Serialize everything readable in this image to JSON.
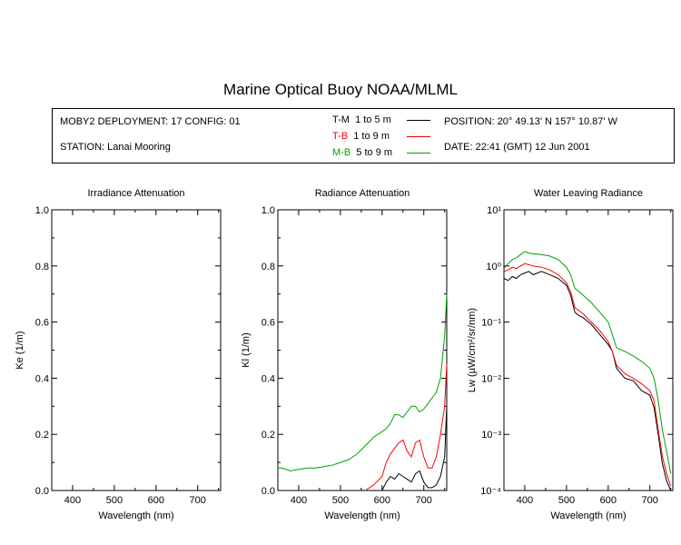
{
  "header": {
    "title": "Marine Optical Buoy NOAA/MLML",
    "deployment": "MOBY2 DEPLOYMENT: 17 CONFIG: 01",
    "station": "STATION: Lanai Mooring",
    "position": "POSITION: 20° 49.13' N   157° 10.87' W",
    "date": "DATE: 22:41 (GMT) 12 Jun 2001"
  },
  "legend": [
    {
      "code": "T-M",
      "range": "1 to 5  m",
      "color": "#000000"
    },
    {
      "code": "T-B",
      "range": "1 to 9  m",
      "color": "#ff0000"
    },
    {
      "code": "M-B",
      "range": "5 to 9  m",
      "color": "#00a000"
    }
  ],
  "chart_data": [
    {
      "type": "line",
      "title": "Irradiance Attenuation",
      "xlabel": "Wavelength (nm)",
      "ylabel": "Ke  (1/m)",
      "xlim": [
        350,
        755
      ],
      "ylim": [
        0,
        1
      ],
      "x_ticks": [
        400,
        500,
        600,
        700
      ],
      "y_ticks": [
        0.0,
        0.2,
        0.4,
        0.6,
        0.8,
        1.0
      ],
      "y_tick_labels": [
        "0.0",
        "0.2",
        "0.4",
        "0.6",
        "0.8",
        "1.0"
      ],
      "series": []
    },
    {
      "type": "line",
      "title": "Radiance Attenuation",
      "xlabel": "Wavelength (nm)",
      "ylabel": "Kl  (1/m)",
      "xlim": [
        350,
        755
      ],
      "ylim": [
        0,
        1
      ],
      "x_ticks": [
        400,
        500,
        600,
        700
      ],
      "y_ticks": [
        0.0,
        0.2,
        0.4,
        0.6,
        0.8,
        1.0
      ],
      "y_tick_labels": [
        "0.0",
        "0.2",
        "0.4",
        "0.6",
        "0.8",
        "1.0"
      ],
      "series": [
        {
          "name": "T-M",
          "color": "#000000",
          "x": [
            600,
            610,
            620,
            630,
            640,
            650,
            660,
            670,
            680,
            690,
            700,
            710,
            720,
            730,
            740,
            750,
            755
          ],
          "y": [
            0.0,
            0.03,
            0.05,
            0.04,
            0.06,
            0.05,
            0.04,
            0.03,
            0.06,
            0.07,
            0.03,
            0.01,
            0.01,
            0.02,
            0.05,
            0.12,
            0.3
          ]
        },
        {
          "name": "T-B",
          "color": "#ff0000",
          "x": [
            560,
            580,
            600,
            610,
            620,
            630,
            640,
            650,
            660,
            670,
            680,
            690,
            700,
            710,
            720,
            730,
            740,
            750,
            755
          ],
          "y": [
            0.0,
            0.02,
            0.05,
            0.1,
            0.13,
            0.15,
            0.17,
            0.18,
            0.14,
            0.12,
            0.17,
            0.18,
            0.12,
            0.08,
            0.08,
            0.12,
            0.2,
            0.3,
            0.45
          ]
        },
        {
          "name": "M-B",
          "color": "#00a000",
          "x": [
            350,
            360,
            380,
            400,
            420,
            440,
            460,
            480,
            500,
            520,
            540,
            560,
            580,
            600,
            610,
            620,
            630,
            640,
            650,
            660,
            670,
            680,
            690,
            700,
            710,
            720,
            730,
            740,
            750,
            755
          ],
          "y": [
            0.08,
            0.08,
            0.07,
            0.075,
            0.08,
            0.08,
            0.085,
            0.09,
            0.1,
            0.11,
            0.13,
            0.16,
            0.19,
            0.21,
            0.22,
            0.24,
            0.27,
            0.27,
            0.26,
            0.28,
            0.3,
            0.3,
            0.28,
            0.29,
            0.31,
            0.33,
            0.35,
            0.4,
            0.55,
            0.7
          ]
        }
      ]
    },
    {
      "type": "line",
      "title": "Water Leaving Radiance",
      "xlabel": "Wavelength (nm)",
      "ylabel": "Lw  (µW/cm²/sr/nm)",
      "xlim": [
        350,
        755
      ],
      "ylim": [
        0.0001,
        10
      ],
      "y_scale": "log",
      "x_ticks": [
        400,
        500,
        600,
        700
      ],
      "y_ticks": [
        0.0001,
        0.001,
        0.01,
        0.1,
        1,
        10
      ],
      "y_tick_labels": [
        "10⁻⁴",
        "10⁻³",
        "10⁻²",
        "10⁻¹",
        "10⁰",
        "10¹"
      ],
      "series": [
        {
          "name": "T-M",
          "color": "#000000",
          "x": [
            350,
            360,
            370,
            380,
            390,
            400,
            410,
            420,
            440,
            460,
            480,
            500,
            510,
            520,
            530,
            540,
            560,
            580,
            600,
            610,
            620,
            640,
            660,
            680,
            700,
            710,
            720,
            730,
            740,
            750
          ],
          "y": [
            0.6,
            0.55,
            0.65,
            0.6,
            0.7,
            0.75,
            0.8,
            0.7,
            0.8,
            0.7,
            0.6,
            0.45,
            0.3,
            0.15,
            0.13,
            0.12,
            0.09,
            0.06,
            0.04,
            0.03,
            0.015,
            0.01,
            0.009,
            0.006,
            0.005,
            0.003,
            0.001,
            0.0003,
            0.00015,
            0.0001
          ]
        },
        {
          "name": "T-B",
          "color": "#ff0000",
          "x": [
            350,
            360,
            370,
            380,
            390,
            400,
            410,
            420,
            440,
            460,
            480,
            500,
            510,
            520,
            530,
            540,
            560,
            580,
            600,
            610,
            620,
            640,
            660,
            680,
            700,
            710,
            720,
            730,
            740,
            750
          ],
          "y": [
            0.8,
            0.85,
            0.95,
            0.9,
            1.0,
            1.1,
            1.05,
            1.0,
            0.95,
            0.85,
            0.7,
            0.5,
            0.35,
            0.18,
            0.16,
            0.14,
            0.1,
            0.07,
            0.045,
            0.03,
            0.017,
            0.012,
            0.01,
            0.008,
            0.006,
            0.004,
            0.0012,
            0.0004,
            0.0002,
            0.00012
          ]
        },
        {
          "name": "M-B",
          "color": "#00a000",
          "x": [
            350,
            360,
            370,
            380,
            390,
            400,
            410,
            420,
            440,
            460,
            480,
            500,
            510,
            520,
            530,
            540,
            560,
            580,
            600,
            610,
            620,
            640,
            660,
            680,
            700,
            710,
            720,
            730,
            740,
            750
          ],
          "y": [
            0.9,
            1.1,
            1.3,
            1.4,
            1.6,
            1.8,
            1.7,
            1.65,
            1.6,
            1.5,
            1.3,
            0.95,
            0.7,
            0.4,
            0.35,
            0.3,
            0.22,
            0.15,
            0.1,
            0.06,
            0.035,
            0.03,
            0.025,
            0.02,
            0.015,
            0.01,
            0.004,
            0.0012,
            0.0005,
            0.0002
          ]
        }
      ]
    }
  ]
}
